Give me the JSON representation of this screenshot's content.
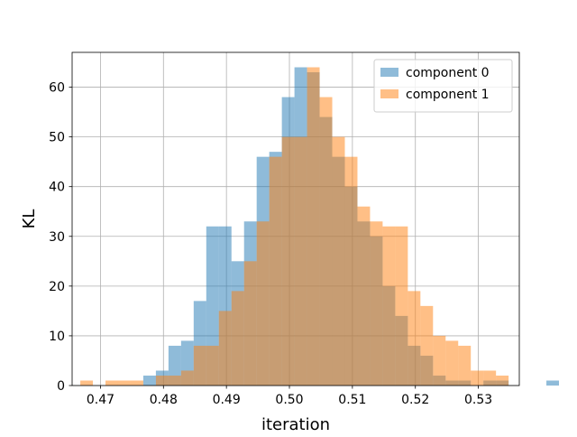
{
  "chart_data": {
    "type": "bar",
    "title": "",
    "xlabel": "iteration",
    "ylabel": "KL",
    "xlim": [
      0.4655,
      0.5365
    ],
    "ylim": [
      0,
      67
    ],
    "xticks": [
      0.47,
      0.48,
      0.49,
      0.5,
      0.51,
      0.52,
      0.53
    ],
    "xtick_labels": [
      "0.47",
      "0.48",
      "0.49",
      "0.50",
      "0.51",
      "0.52",
      "0.53"
    ],
    "yticks": [
      0,
      10,
      20,
      30,
      40,
      50,
      60
    ],
    "ytick_labels": [
      "0",
      "10",
      "20",
      "30",
      "40",
      "50",
      "60"
    ],
    "grid": true,
    "legend_position": "top-right",
    "series": [
      {
        "name": "component 0",
        "color": "#1f77b4",
        "alpha": 0.5,
        "bin_start": 0.4768,
        "bin_width": 0.002,
        "counts": [
          2,
          3,
          8,
          9,
          17,
          32,
          32,
          25,
          33,
          46,
          47,
          58,
          64,
          63,
          54,
          46,
          40,
          33,
          30,
          20,
          14,
          8,
          6,
          2,
          1,
          1,
          0,
          1,
          1,
          0,
          0,
          0,
          1
        ]
      },
      {
        "name": "component 1",
        "color": "#ff7f0e",
        "alpha": 0.5,
        "bin_start": 0.4668,
        "bin_width": 0.002,
        "counts": [
          1,
          0,
          1,
          1,
          1,
          0,
          2,
          2,
          3,
          8,
          8,
          15,
          19,
          25,
          33,
          46,
          50,
          50,
          64,
          58,
          50,
          46,
          36,
          33,
          32,
          32,
          19,
          16,
          10,
          9,
          8,
          3,
          3,
          2
        ]
      }
    ]
  }
}
